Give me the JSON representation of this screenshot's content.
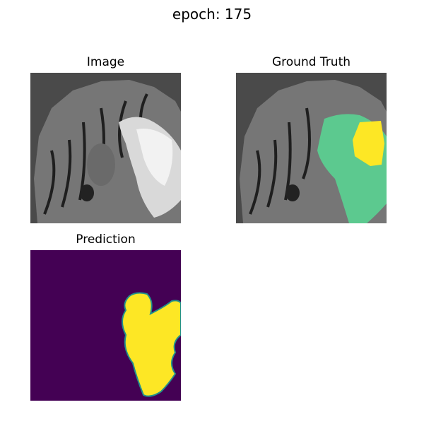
{
  "figure": {
    "title": "epoch: 175"
  },
  "panels": [
    {
      "title": "Image",
      "content": "grayscale brain MRI slice with bright hyperintense region on the right"
    },
    {
      "title": "Ground Truth",
      "content": "MRI slice with green segmentation overlay and yellow core region"
    },
    {
      "title": "Prediction",
      "content": "purple background with yellow predicted tumor mask on the right"
    }
  ],
  "colors": {
    "background_gray": "#4a4a4a",
    "tissue_gray": "#7d7d7d",
    "overlay_green": "#5cc98f",
    "core_yellow": "#fde725",
    "prediction_bg": "#440154",
    "prediction_fg": "#fde725",
    "prediction_edge": "#21918c"
  }
}
